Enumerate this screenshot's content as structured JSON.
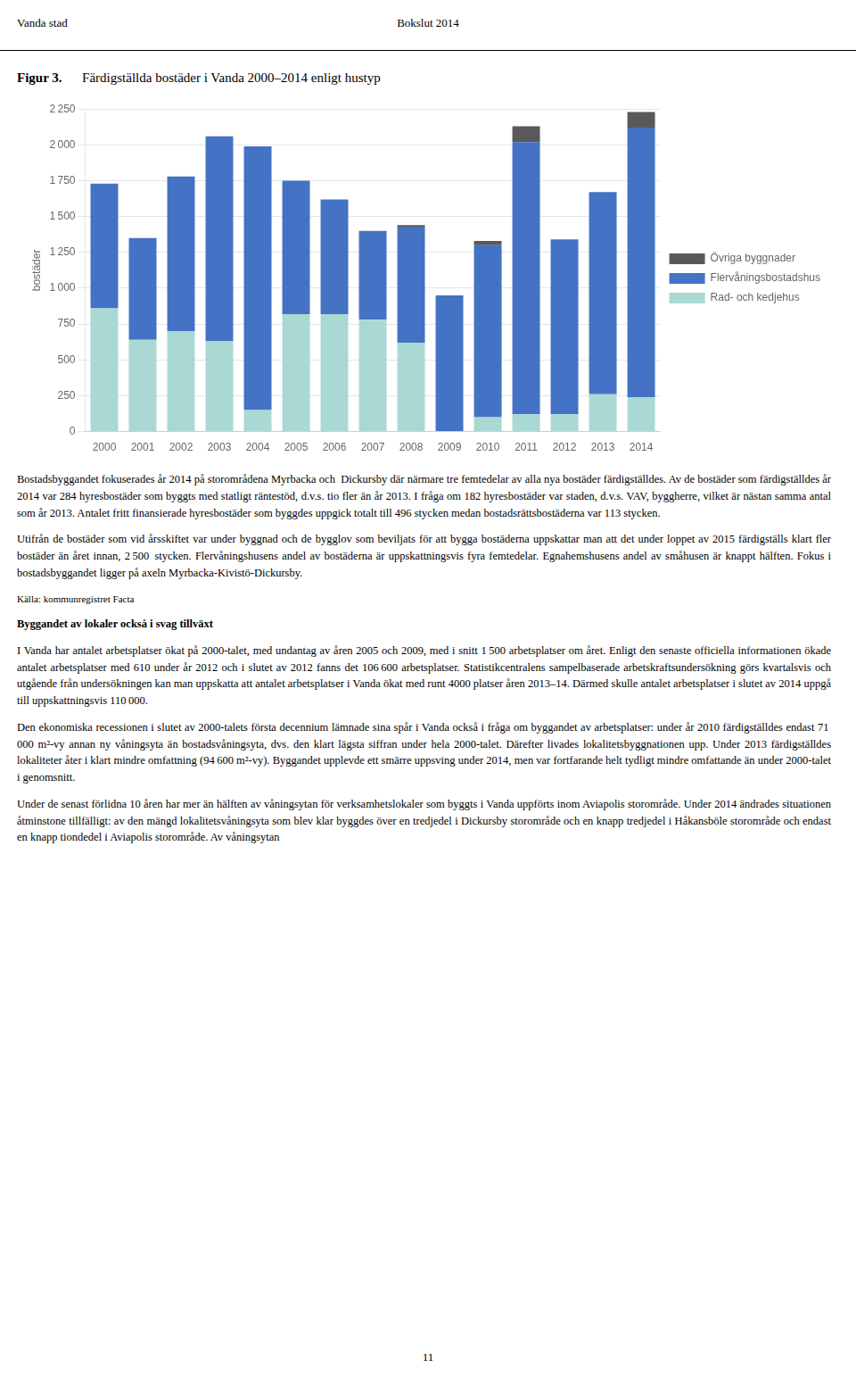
{
  "chart_data": {
    "type": "bar",
    "stacked": true,
    "title": "Figur 3.  Färdigställda bostäder i Vanda 2000–2014 enligt hustyp",
    "y_label": "bostäder",
    "categories": [
      "2000",
      "2001",
      "2002",
      "2003",
      "2004",
      "2005",
      "2006",
      "2007",
      "2008",
      "2009",
      "2010",
      "2011",
      "2012",
      "2013",
      "2014"
    ],
    "series": [
      {
        "name": "Rad- och kedjehus",
        "color": "#aad8d3",
        "values": [
          860,
          640,
          700,
          630,
          150,
          820,
          820,
          780,
          620,
          0,
          100,
          120,
          120,
          260,
          240
        ]
      },
      {
        "name": "Flervåningsbostadshus",
        "color": "#4472c4",
        "values": [
          870,
          710,
          1080,
          1430,
          1840,
          930,
          800,
          620,
          810,
          950,
          1200,
          1900,
          1220,
          1410,
          1880
        ]
      },
      {
        "name": "Övriga byggnader",
        "color": "#595959",
        "values": [
          0,
          0,
          0,
          0,
          0,
          0,
          0,
          0,
          10,
          0,
          30,
          110,
          0,
          0,
          110
        ]
      }
    ],
    "ylim": [
      0,
      2250
    ],
    "yticks": [
      0,
      250,
      500,
      750,
      {
        "value": 1000,
        "label": "1 000"
      },
      {
        "value": 1250,
        "label": "1 250"
      },
      {
        "value": 1500,
        "label": "1 500"
      },
      {
        "value": 1750,
        "label": "1 750"
      },
      {
        "value": 2000,
        "label": "2 000"
      },
      {
        "value": 2250,
        "label": "2 250"
      }
    ],
    "grid": true,
    "legend": "right",
    "annotations": [
      "Vanda stad",
      "Bokslut 2014",
      "Bostadsbyggandet fokuserades år 2014 på storområdena Myrbacka och  Dickursby där närmare tre femtedelar av alla nya bostäder färdigställdes. Av de bostäder som färdigställdes år 2014 var 284 hyresbostäder som byggts med statligt räntestöd, d.v.s. tio fler än år 2013. I fråga om 182 hyresbostäder var staden, d.v.s. VAV, byggherre, vilket är nästan samma antal som år 2013. Antalet fritt finansierade hyresbostäder som byggdes uppgick totalt till 496 stycken medan bostadsrättsbostäderna var 113 stycken.",
      "Utifrån de bostäder som vid årsskiftet var under byggnad och de bygglov som beviljats för att bygga bostäderna uppskattar man att det under loppet av 2015 färdigställs klart fler bostäder än året innan, 2 500 stycken. Flervåningshusens andel av bostäderna är uppskattningsvis fyra femtedelar. Egnahemshusens andel av småhusen är knappt hälften. Fokus i bostadsbyggandet ligger på axeln Myrbacka-Kivistö-Dickursby.",
      "Källa: kommunregistret Facta",
      "Byggandet av lokaler också i svag tillväxt",
      "I Vanda har antalet arbetsplatser ökat på 2000-talet, med undantag av åren 2005 och 2009, med i snitt 1 500 arbetsplatser om året. Enligt den senaste officiella informationen ökade antalet arbetsplatser med 610 under år 2012 och i slutet av 2012 fanns det 106 600 arbetsplatser. Statistikcentralens sampelbaserade arbetskraftsundersökning görs kvartalsvis och utgående från undersökningen kan man uppskatta att antalet arbetsplatser i Vanda ökat med runt 4000 platser åren 2013–14. Därmed skulle antalet arbetsplatser i slutet av 2014 uppgå till uppskattningsvis 110 000.",
      "Den ekonomiska recessionen i slutet av 2000-talets första decennium lämnade sina spår i Vanda också i fråga om byggandet av arbetsplatser: under år 2010 färdigställdes endast 71 000 m²-vy annan ny våningsyta än bostadsvåningsyta, dvs. den klart lägsta siffran under hela 2000-talet. Därefter livades lokalitetsbyggnationen upp. Under 2013 färdigställdes lokaliteter åter i klart mindre omfattning (94 600 m²-vy). Byggandet upplevde ett smärre uppsving under 2014, men var fortfarande helt tydligt mindre omfattande än under 2000-talet i genomsnitt.",
      "Under de senast förlidna 10 åren har mer än hälften av våningsytan för verksamhetslokaler som byggts i Vanda uppförts inom Aviapolis storområde. Under 2014 ändrades situationen åtminstone tillfälligt: av den mängd lokalitetsvåningsyta som blev klar byggdes över en tredjedel i Dickursby storområde och en knapp tredjedel i Håkansböle storområde och endast en knapp tiondedel i Aviapolis storområde. Av våningsytan",
      "11"
    ]
  }
}
